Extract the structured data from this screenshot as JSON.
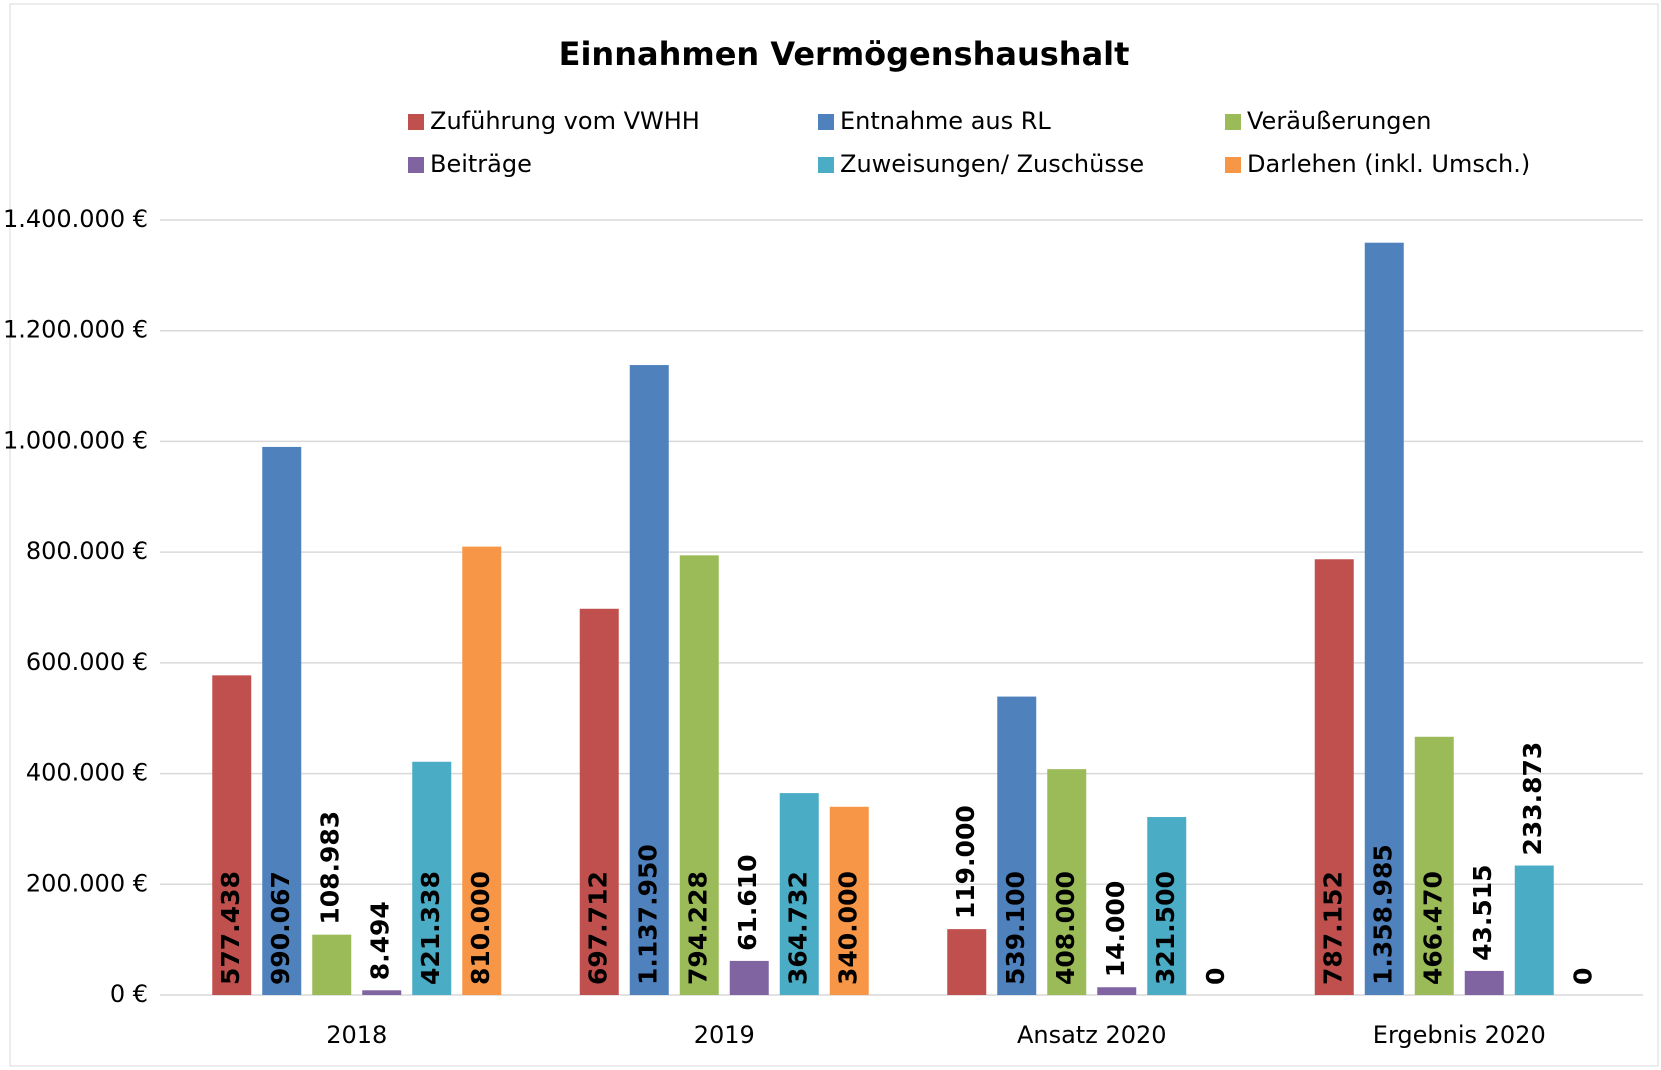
{
  "chart_data": {
    "type": "bar",
    "title": "Einnahmen Vermögenshaushalt",
    "categories": [
      "2018",
      "2019",
      "Ansatz 2020",
      "Ergebnis 2020"
    ],
    "series": [
      {
        "name": "Zuführung vom VWHH",
        "color": "#c0504d",
        "label_color": "#000000",
        "values": [
          577438,
          697712,
          119000,
          787152
        ],
        "value_labels": [
          "577.438",
          "697.712",
          "119.000",
          "787.152"
        ]
      },
      {
        "name": "Entnahme aus RL",
        "color": "#4f81bd",
        "label_color": "#ffffff",
        "values": [
          990067,
          1137950,
          539100,
          1358985
        ],
        "value_labels": [
          "990.067",
          "1.137.950",
          "539.100",
          "1.358.985"
        ]
      },
      {
        "name": "Veräußerungen",
        "color": "#9bbb59",
        "label_color": "#000000",
        "values": [
          108983,
          794228,
          408000,
          466470
        ],
        "value_labels": [
          "108.983",
          "794.228",
          "408.000",
          "466.470"
        ]
      },
      {
        "name": "Beiträge",
        "color": "#8064a2",
        "label_color": "#000000",
        "values": [
          8494,
          61610,
          14000,
          43515
        ],
        "value_labels": [
          "8.494",
          "61.610",
          "14.000",
          "43.515"
        ]
      },
      {
        "name": "Zuweisungen/ Zuschüsse",
        "color": "#4bacc6",
        "label_color": "#000000",
        "values": [
          421338,
          364732,
          321500,
          233873
        ],
        "value_labels": [
          "421.338",
          "364.732",
          "321.500",
          "233.873"
        ]
      },
      {
        "name": "Darlehen (inkl. Umsch.)",
        "color": "#f79646",
        "label_color": "#000000",
        "values": [
          810000,
          340000,
          0,
          0
        ],
        "value_labels": [
          "810.000",
          "340.000",
          "0",
          "0"
        ]
      }
    ],
    "ylim": [
      0,
      1400000
    ],
    "yticks": [
      {
        "value": 0,
        "label": "0 €"
      },
      {
        "value": 200000,
        "label": "200.000 €"
      },
      {
        "value": 400000,
        "label": "400.000 €"
      },
      {
        "value": 600000,
        "label": "600.000 €"
      },
      {
        "value": 800000,
        "label": "800.000 €"
      },
      {
        "value": 1000000,
        "label": "1.000.000 €"
      },
      {
        "value": 1200000,
        "label": "1.200.000 €"
      },
      {
        "value": 1400000,
        "label": "1.400.000 €"
      }
    ],
    "grid": true,
    "legend": "top"
  }
}
